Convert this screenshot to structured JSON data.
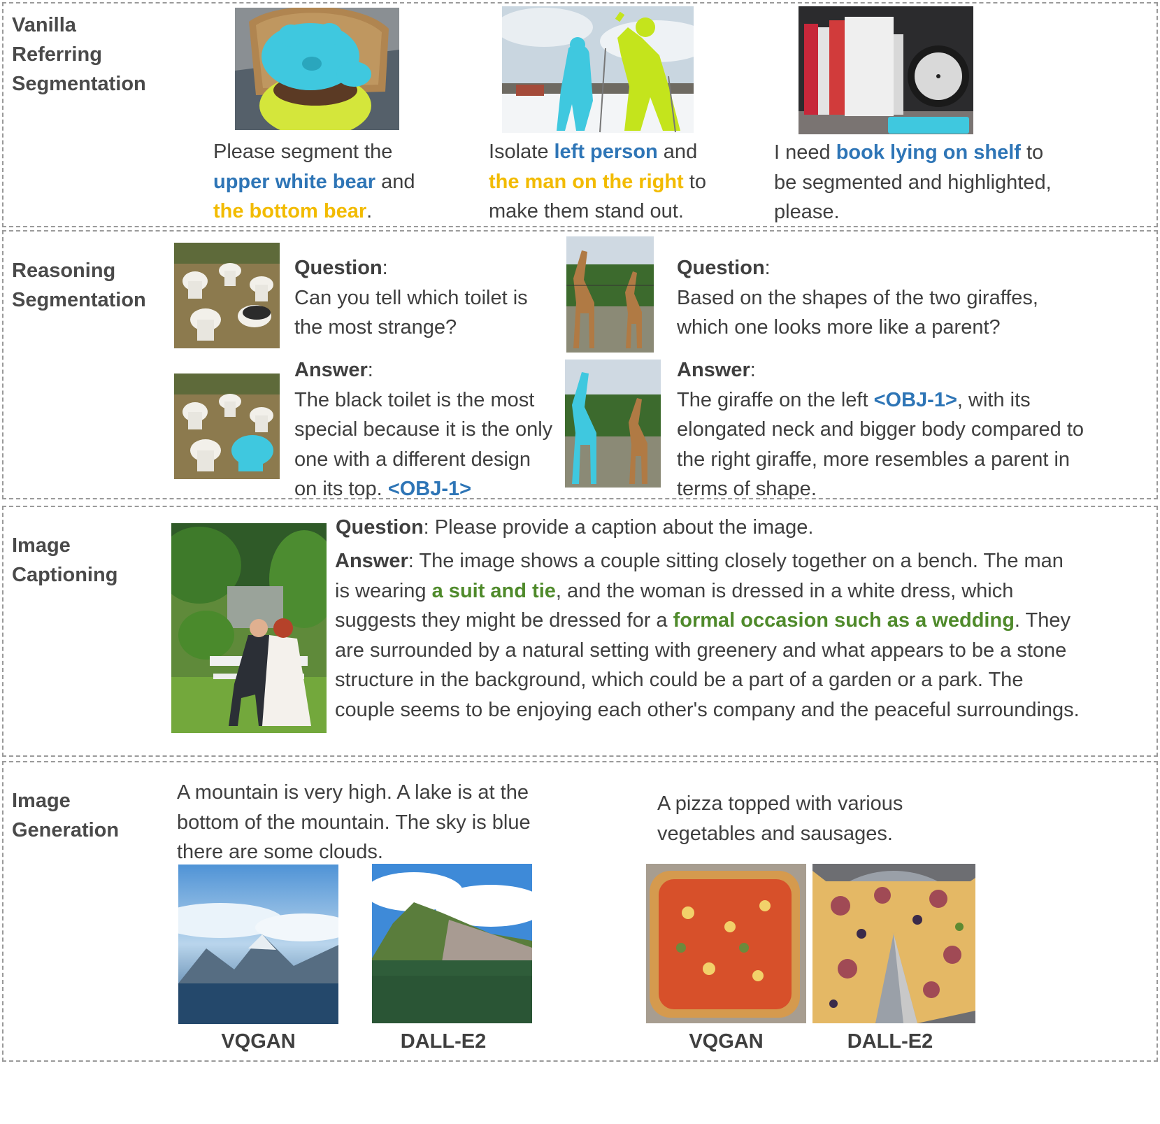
{
  "vanilla": {
    "label": "Vanilla\nReferring\nSegmentation",
    "ex1": {
      "pre": "Please segment the ",
      "obj1": "upper white bear",
      "mid": " and ",
      "obj2": "the bottom bear",
      "post": "."
    },
    "ex2": {
      "pre": "Isolate ",
      "obj1": "left person",
      "mid": " and ",
      "obj2": "the man on the right",
      "post": " to make them stand out."
    },
    "ex3": {
      "pre": "I need ",
      "obj1": "book lying on shelf",
      "post": " to be segmented and highlighted, please."
    }
  },
  "reasoning": {
    "label": "Reasoning\nSegmentation",
    "q_label": "Question",
    "a_label": "Answer",
    "colon": ":",
    "left_question": "Can you tell which toilet is the most strange?",
    "left_answer": "The black toilet is the most special because it is the only one with a different design on its top. ",
    "left_token": "<OBJ-1>",
    "right_question": "Based on the shapes of the two giraffes, which one looks more like a parent?",
    "right_answer_pre": "The giraffe on the left ",
    "right_token": "<OBJ-1>",
    "right_answer_post": ", with its elongated neck and bigger body compared to the right giraffe, more resembles a parent in terms of shape."
  },
  "captioning": {
    "label": "Image\nCaptioning",
    "q_label": "Question",
    "a_label": "Answer",
    "question": ": Please provide a caption about the image.",
    "a1": ": The image shows a couple sitting closely together on a bench. The man is wearing ",
    "h1": "a suit and tie",
    "a2": ", and the woman is dressed in a white dress, which suggests they might be dressed for a ",
    "h2": "formal occasion such as a wedding",
    "a3": ". They are surrounded by a natural setting with greenery and what appears to be a stone structure in the background, which could be a part of a garden or a park. The couple seems to be enjoying each other's company and the peaceful surroundings."
  },
  "generation": {
    "label": "Image\nGeneration",
    "prompt1": "A mountain is very high. A lake is at the bottom of the mountain. The sky is blue there are some clouds.",
    "prompt2": "A pizza topped with various vegetables and sausages.",
    "models": [
      "VQGAN",
      "DALL-E2",
      "VQGAN",
      "DALL-E2"
    ]
  }
}
